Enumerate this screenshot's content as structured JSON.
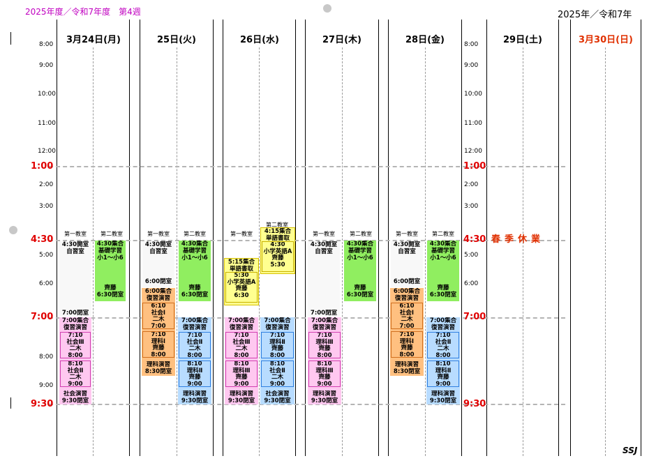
{
  "header": {
    "left_title": "2025年度／令和7年度　第4週",
    "right_title": "2025年／令和7年"
  },
  "days": [
    {
      "label": "3月24日(月)"
    },
    {
      "label": "25日(火)"
    },
    {
      "label": "26日(水)"
    },
    {
      "label": "27日(木)"
    },
    {
      "label": "28日(金)"
    },
    {
      "label": "29日(土)"
    },
    {
      "label": "3月30日(日)"
    }
  ],
  "times_small": [
    "8:00",
    "9:00",
    "10:00",
    "11:00",
    "12:00",
    "2:00",
    "3:00",
    "5:00",
    "6:00",
    "8:00",
    "9:00"
  ],
  "times_big": [
    "1:00",
    "4:30",
    "7:00",
    "9:30"
  ],
  "rooms": {
    "first": "第一教室",
    "second": "第二教室"
  },
  "mon": {
    "open1": [
      "4:30開室",
      "自習室"
    ],
    "close1": "7:00閉室",
    "pink_head": [
      "7:00集合",
      "復習演習"
    ],
    "pink1": [
      "7:10",
      "社会Ⅲ",
      "二木",
      "8:00"
    ],
    "pink2": [
      "8:10",
      "社会Ⅱ",
      "二木",
      "9:00"
    ],
    "pink_tail": [
      "社会演習",
      "9:30閉室"
    ],
    "green": [
      "4:30集合",
      "基礎学習",
      "小1〜小6"
    ],
    "green_tail": [
      "齊藤",
      "6:30閉室"
    ]
  },
  "tue": {
    "open1": [
      "4:30開室",
      "自習室"
    ],
    "close1": "6:00閉室",
    "orange_head": [
      "6:00集合",
      "復習演習"
    ],
    "orange1": [
      "6:10",
      "社会Ⅰ",
      "二木",
      "7:00"
    ],
    "orange2": [
      "7:10",
      "理科Ⅰ",
      "齊藤",
      "8:00"
    ],
    "orange_tail": [
      "理科演習",
      "8:30閉室"
    ],
    "green": [
      "4:30集合",
      "基礎学習",
      "小1〜小6"
    ],
    "green_tail": [
      "齊藤",
      "6:30閉室"
    ],
    "blue_head": [
      "7:00集合",
      "復習演習"
    ],
    "blue1": [
      "7:10",
      "社会Ⅱ",
      "二木",
      "8:00"
    ],
    "blue2": [
      "8:10",
      "理科Ⅱ",
      "齊藤",
      "9:00"
    ],
    "blue_tail": [
      "理科演習",
      "9:30閉室"
    ]
  },
  "wed": {
    "yellow_a": [
      "5:15集合",
      "単語書取"
    ],
    "yellow_a_in": [
      "5:30",
      "小学英語A",
      "齊藤",
      "6:30"
    ],
    "room2": "第二教室",
    "yellow_b": [
      "4:15集合",
      "単語書取"
    ],
    "yellow_b_in": [
      "4:30",
      "小学英語A",
      "齊藤",
      "5:30"
    ],
    "pink_head": [
      "7:00集合",
      "復習演習"
    ],
    "pink1": [
      "7:10",
      "社会Ⅲ",
      "二木",
      "8:00"
    ],
    "pink2": [
      "8:10",
      "理科Ⅲ",
      "齊藤",
      "9:00"
    ],
    "pink_tail": [
      "理科演習",
      "9:30閉室"
    ],
    "blue_head": [
      "7:00集合",
      "復習演習"
    ],
    "blue1": [
      "7:10",
      "理科Ⅱ",
      "齊藤",
      "8:00"
    ],
    "blue2": [
      "8:10",
      "社会Ⅱ",
      "二木",
      "9:00"
    ],
    "blue_tail": [
      "社会演習",
      "9:30閉室"
    ]
  },
  "thu": {
    "open1": [
      "4:30開室",
      "自習室"
    ],
    "close1": "7:00閉室",
    "pink_head": [
      "7:00集合",
      "復習演習"
    ],
    "pink1": [
      "7:10",
      "理科Ⅲ",
      "齊藤",
      "8:00"
    ],
    "pink2": [
      "8:10",
      "理科Ⅲ",
      "齊藤",
      "9:00"
    ],
    "pink_tail": [
      "理科演習",
      "9:30閉室"
    ],
    "green": [
      "4:30集合",
      "基礎学習",
      "小1〜小6"
    ],
    "green_tail": [
      "齊藤",
      "6:30閉室"
    ]
  },
  "fri": {
    "open1": [
      "4:30開室",
      "自習室"
    ],
    "close1": "6:00閉室",
    "orange_head": [
      "6:00集合",
      "復習演習"
    ],
    "orange1": [
      "6:10",
      "社会Ⅰ",
      "二木",
      "7:00"
    ],
    "orange2": [
      "7:10",
      "理科Ⅰ",
      "齊藤",
      "8:00"
    ],
    "orange_tail": [
      "理科演習",
      "8:30閉室"
    ],
    "green": [
      "4:30集合",
      "基礎学習",
      "小1〜小6"
    ],
    "green_tail": [
      "齊藤",
      "6:30閉室"
    ],
    "blue_head": [
      "7:00集合",
      "復習演習"
    ],
    "blue1": [
      "7:10",
      "社会Ⅱ",
      "二木",
      "8:00"
    ],
    "blue2": [
      "8:10",
      "理科Ⅱ",
      "齊藤",
      "9:00"
    ],
    "blue_tail": [
      "理科演習",
      "9:30閉室"
    ]
  },
  "holiday": "春季休業",
  "signature": "SSJ"
}
